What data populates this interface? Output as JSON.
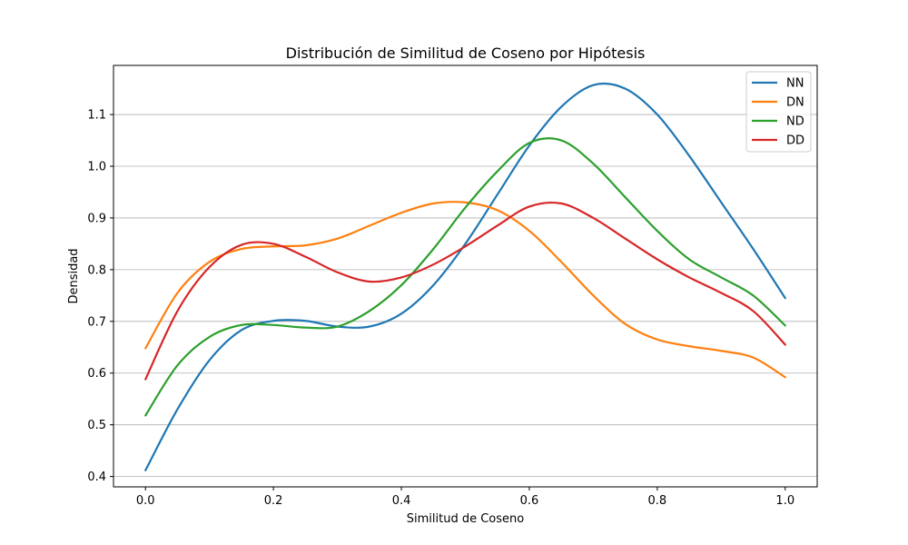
{
  "chart_data": {
    "type": "line",
    "title": "Distribución de Similitud de Coseno por Hipótesis",
    "xlabel": "Similitud de Coseno",
    "ylabel": "Densidad",
    "xlim": [
      -0.05,
      1.05
    ],
    "ylim": [
      0.38,
      1.195
    ],
    "x_ticks": [
      "0.0",
      "0.2",
      "0.4",
      "0.6",
      "0.8",
      "1.0"
    ],
    "y_ticks": [
      "0.4",
      "0.5",
      "0.6",
      "0.7",
      "0.8",
      "0.9",
      "1.0",
      "1.1"
    ],
    "grid": "horizontal",
    "legend_position": "top-right",
    "series": [
      {
        "name": "NN",
        "color": "#1f77b4",
        "points": [
          [
            0.0,
            0.412
          ],
          [
            0.05,
            0.53
          ],
          [
            0.1,
            0.625
          ],
          [
            0.15,
            0.683
          ],
          [
            0.2,
            0.701
          ],
          [
            0.25,
            0.701
          ],
          [
            0.3,
            0.69
          ],
          [
            0.35,
            0.69
          ],
          [
            0.4,
            0.715
          ],
          [
            0.45,
            0.77
          ],
          [
            0.5,
            0.85
          ],
          [
            0.55,
            0.945
          ],
          [
            0.6,
            1.04
          ],
          [
            0.65,
            1.115
          ],
          [
            0.7,
            1.157
          ],
          [
            0.75,
            1.15
          ],
          [
            0.8,
            1.1
          ],
          [
            0.85,
            1.02
          ],
          [
            0.9,
            0.93
          ],
          [
            0.95,
            0.84
          ],
          [
            1.0,
            0.745
          ]
        ]
      },
      {
        "name": "DN",
        "color": "#ff7f0e",
        "points": [
          [
            0.0,
            0.648
          ],
          [
            0.05,
            0.755
          ],
          [
            0.1,
            0.815
          ],
          [
            0.15,
            0.84
          ],
          [
            0.2,
            0.845
          ],
          [
            0.25,
            0.847
          ],
          [
            0.3,
            0.86
          ],
          [
            0.35,
            0.885
          ],
          [
            0.4,
            0.91
          ],
          [
            0.45,
            0.928
          ],
          [
            0.5,
            0.93
          ],
          [
            0.55,
            0.915
          ],
          [
            0.6,
            0.875
          ],
          [
            0.65,
            0.815
          ],
          [
            0.7,
            0.75
          ],
          [
            0.75,
            0.695
          ],
          [
            0.8,
            0.665
          ],
          [
            0.85,
            0.652
          ],
          [
            0.9,
            0.643
          ],
          [
            0.95,
            0.63
          ],
          [
            1.0,
            0.592
          ]
        ]
      },
      {
        "name": "ND",
        "color": "#2ca02c",
        "points": [
          [
            0.0,
            0.518
          ],
          [
            0.05,
            0.615
          ],
          [
            0.1,
            0.67
          ],
          [
            0.15,
            0.693
          ],
          [
            0.2,
            0.693
          ],
          [
            0.25,
            0.688
          ],
          [
            0.3,
            0.69
          ],
          [
            0.35,
            0.72
          ],
          [
            0.4,
            0.77
          ],
          [
            0.45,
            0.84
          ],
          [
            0.5,
            0.92
          ],
          [
            0.55,
            0.99
          ],
          [
            0.6,
            1.045
          ],
          [
            0.65,
            1.05
          ],
          [
            0.7,
            1.005
          ],
          [
            0.75,
            0.94
          ],
          [
            0.8,
            0.875
          ],
          [
            0.85,
            0.82
          ],
          [
            0.9,
            0.785
          ],
          [
            0.95,
            0.75
          ],
          [
            1.0,
            0.692
          ]
        ]
      },
      {
        "name": "DD",
        "color": "#d62728",
        "points": [
          [
            0.0,
            0.588
          ],
          [
            0.05,
            0.72
          ],
          [
            0.1,
            0.805
          ],
          [
            0.15,
            0.848
          ],
          [
            0.2,
            0.85
          ],
          [
            0.25,
            0.825
          ],
          [
            0.3,
            0.795
          ],
          [
            0.35,
            0.777
          ],
          [
            0.4,
            0.785
          ],
          [
            0.45,
            0.81
          ],
          [
            0.5,
            0.845
          ],
          [
            0.55,
            0.885
          ],
          [
            0.6,
            0.922
          ],
          [
            0.65,
            0.928
          ],
          [
            0.7,
            0.9
          ],
          [
            0.75,
            0.86
          ],
          [
            0.8,
            0.82
          ],
          [
            0.85,
            0.785
          ],
          [
            0.9,
            0.755
          ],
          [
            0.95,
            0.72
          ],
          [
            1.0,
            0.655
          ]
        ]
      }
    ]
  }
}
